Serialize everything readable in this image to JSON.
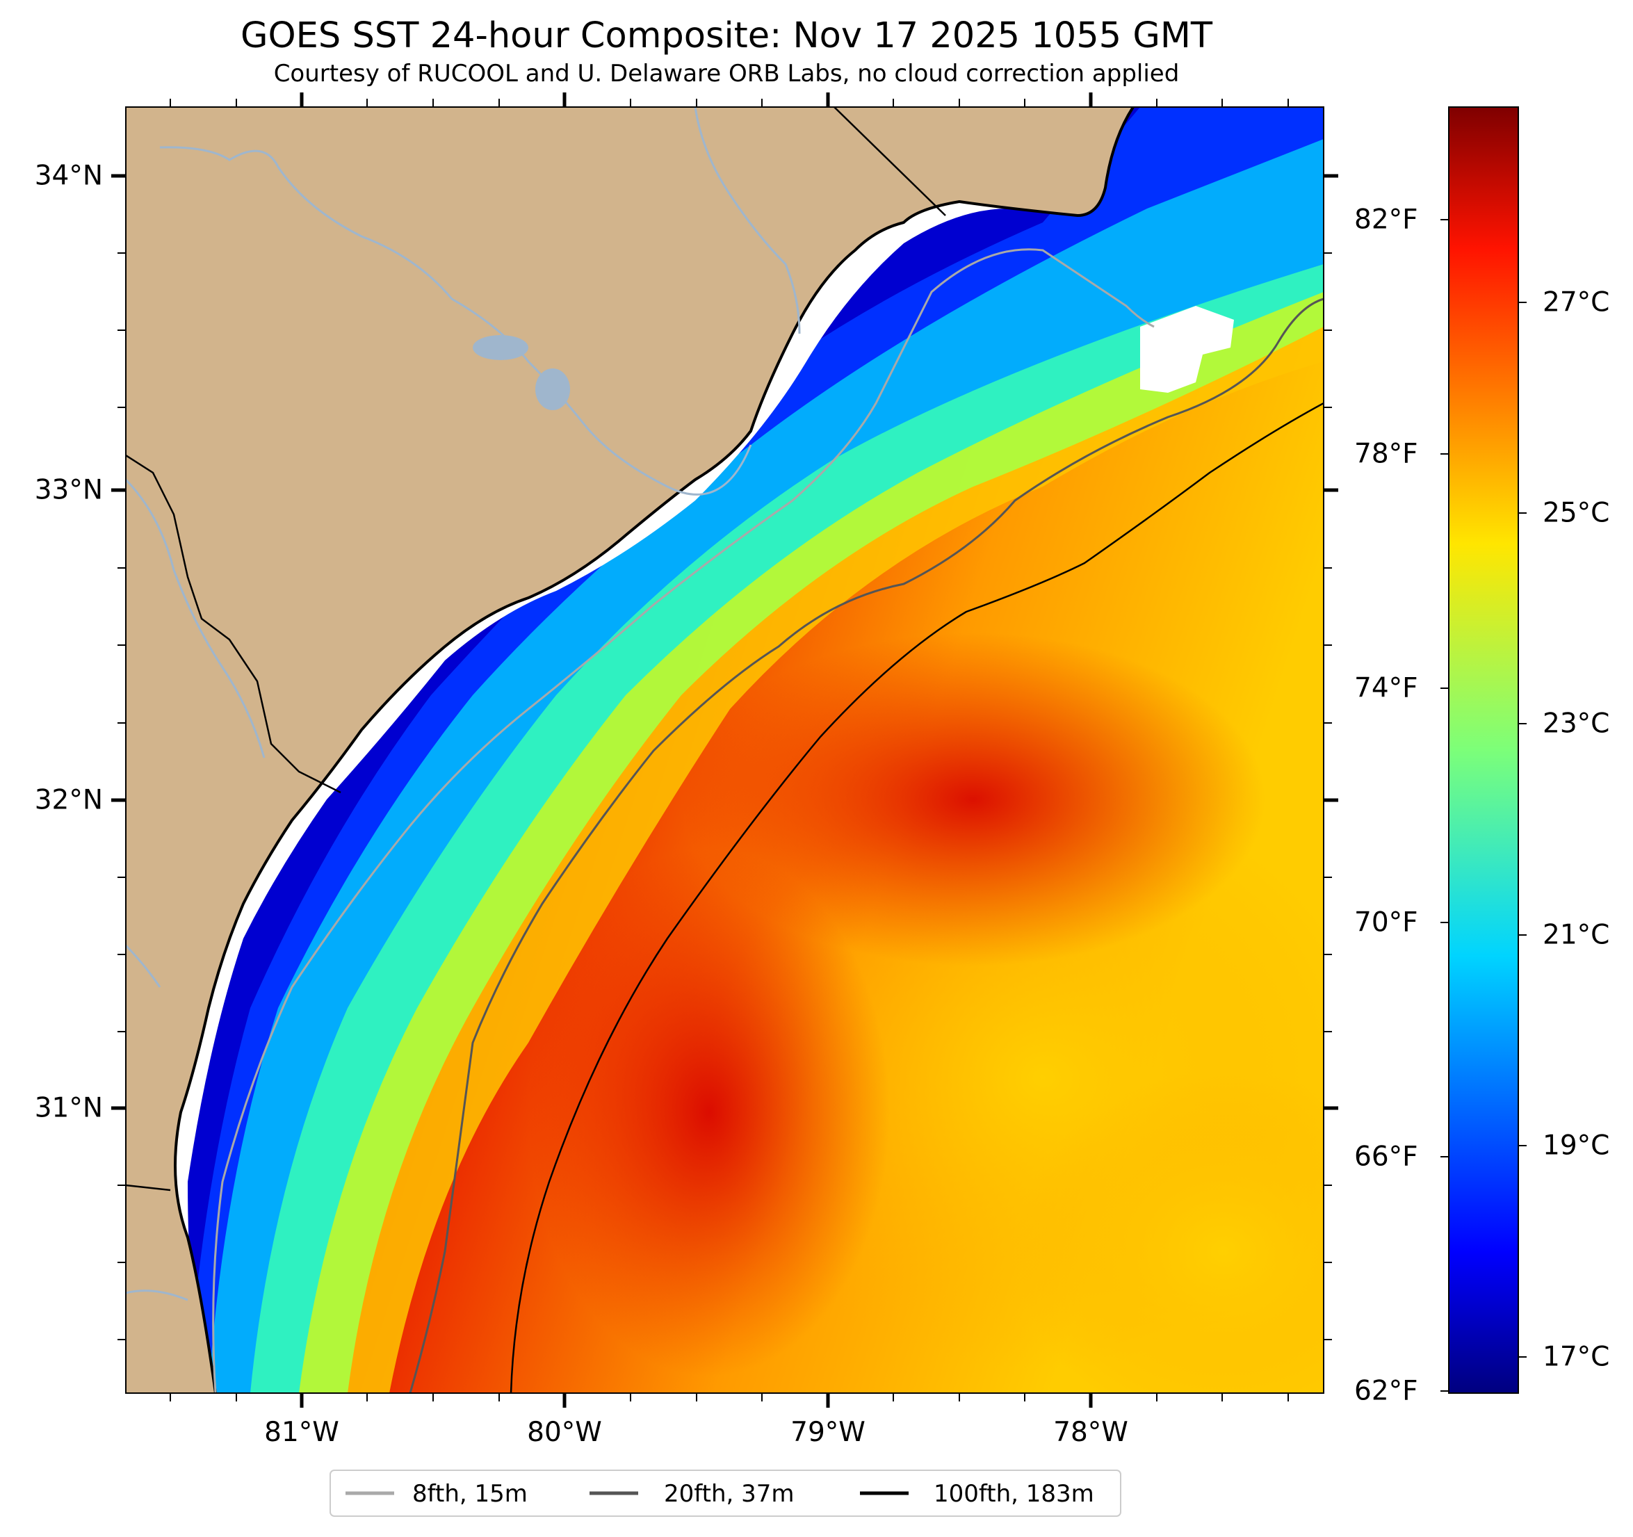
{
  "title": "GOES SST 24-hour Composite: Nov 17 2025 1055 GMT",
  "subtitle": "Courtesy of RUCOOL and U. Delaware ORB Labs, no cloud correction applied",
  "latitude_labels": [
    "34°N",
    "33°N",
    "32°N",
    "31°N"
  ],
  "longitude_labels": [
    "81°W",
    "80°W",
    "79°W",
    "78°W"
  ],
  "colorbar": {
    "fahrenheit_labels": [
      "82°F",
      "78°F",
      "74°F",
      "70°F",
      "66°F",
      "62°F"
    ],
    "celsius_labels": [
      "27°C",
      "25°C",
      "23°C",
      "21°C",
      "19°C",
      "17°C"
    ],
    "colormap": "jet",
    "range_c": [
      16.7,
      28.3
    ]
  },
  "legend": {
    "items": [
      {
        "label": "8fth, 15m",
        "color": "#a9a9a9"
      },
      {
        "label": "20fth, 37m",
        "color": "#555555"
      },
      {
        "label": "100fth, 183m",
        "color": "#000000"
      }
    ]
  },
  "colors": {
    "land": "#d2b48c",
    "river": "#9fb6cd",
    "cloud": "#ffffff",
    "ocean_warm": "#e81800",
    "ocean_cold": "#0000c8"
  },
  "chart_data": {
    "type": "heatmap",
    "title": "GOES SST 24-hour Composite: Nov 17 2025 1055 GMT",
    "variable": "Sea Surface Temperature",
    "units": [
      "°F",
      "°C"
    ],
    "colorbar_range_f": [
      62,
      83
    ],
    "colorbar_range_c": [
      16.7,
      28.3
    ],
    "lon_range": [
      -81.67,
      -77.12
    ],
    "lat_range": [
      30.08,
      34.22
    ],
    "x_ticks": [
      -81,
      -80,
      -79,
      -78
    ],
    "y_ticks": [
      34,
      33,
      32,
      31
    ],
    "isobaths": [
      "8fth, 15m",
      "20fth, 37m",
      "100fth, 183m"
    ]
  }
}
